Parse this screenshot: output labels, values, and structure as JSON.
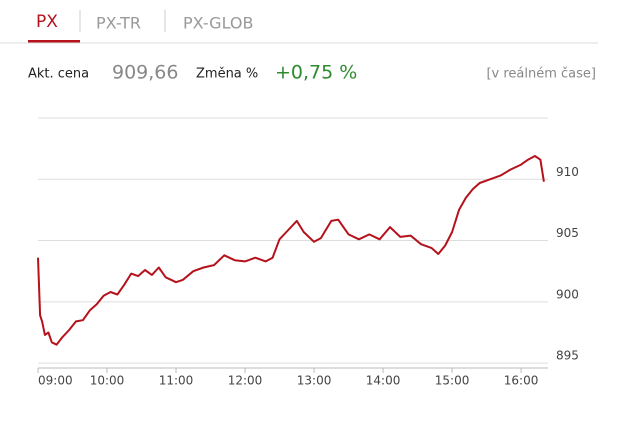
{
  "tabs": [
    "PX",
    "PX-TR",
    "PX-GLOB"
  ],
  "quote": {
    "price_label": "Akt. cena",
    "price": "909,66",
    "change_label": "Změna %",
    "change": "+0,75 %",
    "note": "[v reálném čase]"
  },
  "chart_data": {
    "type": "line",
    "color": "#b5121b",
    "x": [
      9.0,
      9.03,
      9.06,
      9.1,
      9.15,
      9.2,
      9.27,
      9.35,
      9.45,
      9.55,
      9.65,
      9.75,
      9.85,
      9.95,
      10.05,
      10.15,
      10.25,
      10.35,
      10.45,
      10.55,
      10.65,
      10.75,
      10.85,
      11.0,
      11.1,
      11.25,
      11.4,
      11.55,
      11.7,
      11.85,
      12.0,
      12.15,
      12.3,
      12.4,
      12.5,
      12.6,
      12.75,
      12.85,
      13.0,
      13.1,
      13.25,
      13.35,
      13.5,
      13.65,
      13.8,
      13.95,
      14.1,
      14.25,
      14.4,
      14.55,
      14.7,
      14.8,
      14.9,
      15.0,
      15.1,
      15.2,
      15.3,
      15.4,
      15.55,
      15.7,
      15.85,
      16.0,
      16.1,
      16.2,
      16.28,
      16.33
    ],
    "values": [
      903.6,
      898.9,
      898.4,
      897.3,
      897.5,
      896.7,
      896.5,
      897.1,
      897.7,
      898.4,
      898.5,
      899.3,
      899.8,
      900.5,
      900.8,
      900.6,
      901.4,
      902.3,
      902.1,
      902.6,
      902.2,
      902.8,
      902.0,
      901.6,
      901.8,
      902.5,
      902.8,
      903.0,
      903.8,
      903.4,
      903.3,
      903.6,
      903.3,
      903.6,
      905.1,
      905.7,
      906.6,
      905.7,
      904.9,
      905.2,
      906.6,
      906.7,
      905.5,
      905.1,
      905.5,
      905.1,
      906.1,
      905.3,
      905.4,
      904.7,
      904.4,
      903.9,
      904.6,
      905.7,
      907.5,
      908.5,
      909.2,
      909.7,
      910.0,
      910.3,
      910.8,
      911.2,
      911.6,
      911.9,
      911.6,
      909.8
    ],
    "xlim": [
      9,
      16.39
    ],
    "xticks": [
      {
        "value": 9,
        "label": "09:00"
      },
      {
        "value": 10,
        "label": "10:00"
      },
      {
        "value": 11,
        "label": "11:00"
      },
      {
        "value": 12,
        "label": "12:00"
      },
      {
        "value": 13,
        "label": "13:00"
      },
      {
        "value": 14,
        "label": "14:00"
      },
      {
        "value": 15,
        "label": "15:00"
      },
      {
        "value": 16,
        "label": "16:00"
      }
    ],
    "ylim": [
      894.6,
      915
    ],
    "yticks": [
      895,
      900,
      905,
      910
    ],
    "grid": true
  }
}
